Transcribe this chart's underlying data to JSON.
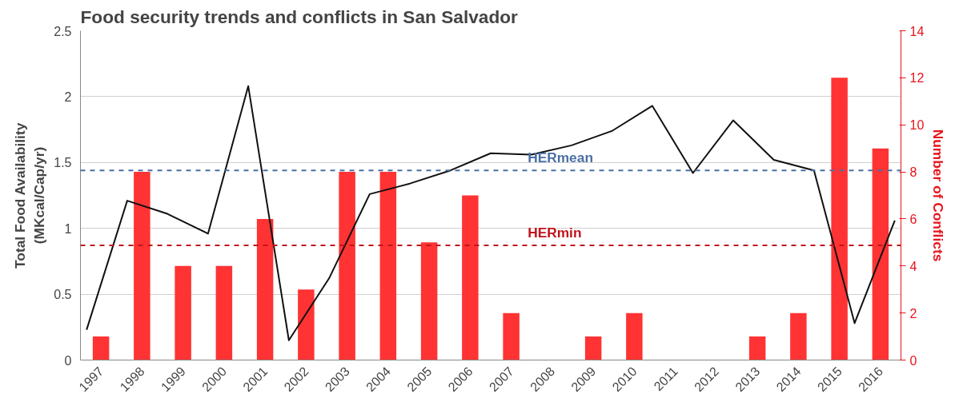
{
  "chart_data": {
    "type": "bar",
    "title": "Food security trends and conflicts in San Salvador",
    "ylabel": "Total Food Availability\n(MKcal/Cap/yr)",
    "y2label": "Number of Conflicts",
    "xlim": [
      1996.5,
      2016.5
    ],
    "xticks": [
      1997,
      1998,
      1999,
      2000,
      2001,
      2002,
      2003,
      2004,
      2005,
      2006,
      2007,
      2008,
      2009,
      2010,
      2011,
      2012,
      2013,
      2014,
      2015,
      2016
    ],
    "ylim": [
      0,
      2.5
    ],
    "yticks": [
      0,
      0.5,
      1,
      1.5,
      2,
      2.5
    ],
    "y2lim": [
      0,
      14
    ],
    "y2ticks": [
      0,
      2,
      4,
      6,
      8,
      10,
      12,
      14
    ],
    "grid": "y",
    "series": [
      {
        "axis": "y2",
        "color": "#ff3333",
        "x": [
          1997,
          1998,
          1999,
          2000,
          2001,
          2002,
          2003,
          2004,
          2005,
          2006,
          2007,
          2008,
          2009,
          2010,
          2011,
          2012,
          2013,
          2014,
          2015,
          2016
        ],
        "values": [
          1,
          8,
          4,
          4,
          6,
          3,
          8,
          8,
          5,
          7,
          2,
          0,
          1,
          2,
          0,
          0,
          1,
          2,
          12,
          9
        ]
      },
      {
        "type": "line",
        "color": "#111111",
        "x": [
          1996.65,
          1997.64,
          1998.62,
          1999.61,
          2000.59,
          2001.58,
          2002.56,
          2003.55,
          2004.53,
          2005.52,
          2006.5,
          2007.49,
          2008.47,
          2009.46,
          2010.44,
          2011.43,
          2012.41,
          2013.4,
          2014.38,
          2015.37,
          2016.35
        ],
        "values": [
          0.23,
          1.21,
          1.11,
          0.96,
          2.08,
          0.15,
          0.62,
          1.26,
          1.34,
          1.44,
          1.57,
          1.56,
          1.63,
          1.74,
          1.93,
          1.42,
          1.82,
          1.52,
          1.44,
          0.28,
          1.06
        ]
      }
    ],
    "ref_lines": [
      {
        "axis": "y",
        "value": 1.44,
        "label": "HERmean",
        "color": "#4a6fa5",
        "line_style": "dashed"
      },
      {
        "axis": "y",
        "value": 0.87,
        "label": "HERmin",
        "color": "#c0141c",
        "line_style": "dashed"
      }
    ]
  }
}
